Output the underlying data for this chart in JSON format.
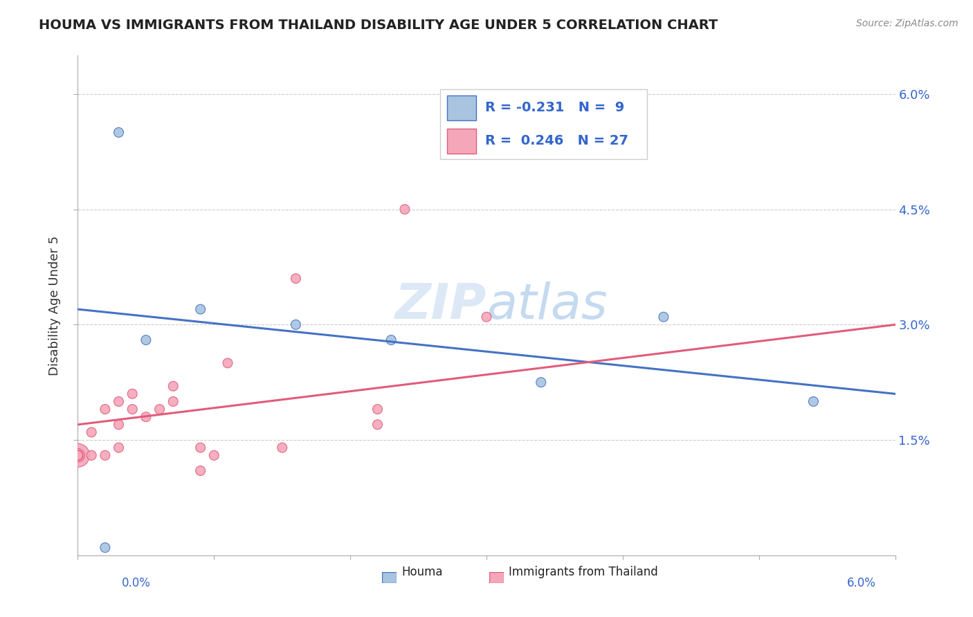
{
  "title": "HOUMA VS IMMIGRANTS FROM THAILAND DISABILITY AGE UNDER 5 CORRELATION CHART",
  "source": "Source: ZipAtlas.com",
  "ylabel": "Disability Age Under 5",
  "xlim": [
    0.0,
    0.06
  ],
  "ylim": [
    0.0,
    0.065
  ],
  "ytick_positions": [
    0.015,
    0.03,
    0.045,
    0.06
  ],
  "ytick_labels": [
    "1.5%",
    "3.0%",
    "4.5%",
    "6.0%"
  ],
  "houma_color": "#a8c4e0",
  "houma_line_color": "#4472c4",
  "thailand_color": "#f4a7b9",
  "thailand_line_color": "#e05c7a",
  "houma_points": [
    [
      0.002,
      0.001
    ],
    [
      0.005,
      0.028
    ],
    [
      0.009,
      0.032
    ],
    [
      0.016,
      0.03
    ],
    [
      0.003,
      0.055
    ],
    [
      0.023,
      0.028
    ],
    [
      0.034,
      0.0225
    ],
    [
      0.054,
      0.02
    ],
    [
      0.043,
      0.031
    ]
  ],
  "houma_sizes": [
    100,
    100,
    100,
    100,
    100,
    100,
    100,
    100,
    100
  ],
  "thailand_points": [
    [
      0.0,
      0.013
    ],
    [
      0.0,
      0.013
    ],
    [
      0.0,
      0.013
    ],
    [
      0.0,
      0.013
    ],
    [
      0.001,
      0.013
    ],
    [
      0.001,
      0.016
    ],
    [
      0.002,
      0.013
    ],
    [
      0.002,
      0.019
    ],
    [
      0.003,
      0.014
    ],
    [
      0.003,
      0.017
    ],
    [
      0.003,
      0.02
    ],
    [
      0.004,
      0.019
    ],
    [
      0.004,
      0.021
    ],
    [
      0.005,
      0.018
    ],
    [
      0.006,
      0.019
    ],
    [
      0.007,
      0.02
    ],
    [
      0.007,
      0.022
    ],
    [
      0.009,
      0.014
    ],
    [
      0.009,
      0.011
    ],
    [
      0.01,
      0.013
    ],
    [
      0.011,
      0.025
    ],
    [
      0.015,
      0.014
    ],
    [
      0.016,
      0.036
    ],
    [
      0.022,
      0.017
    ],
    [
      0.022,
      0.019
    ],
    [
      0.024,
      0.045
    ],
    [
      0.03,
      0.031
    ]
  ],
  "thailand_sizes": [
    600,
    200,
    120,
    100,
    100,
    100,
    100,
    100,
    100,
    100,
    100,
    100,
    100,
    100,
    100,
    100,
    100,
    100,
    100,
    100,
    100,
    100,
    100,
    100,
    100,
    100,
    100
  ]
}
